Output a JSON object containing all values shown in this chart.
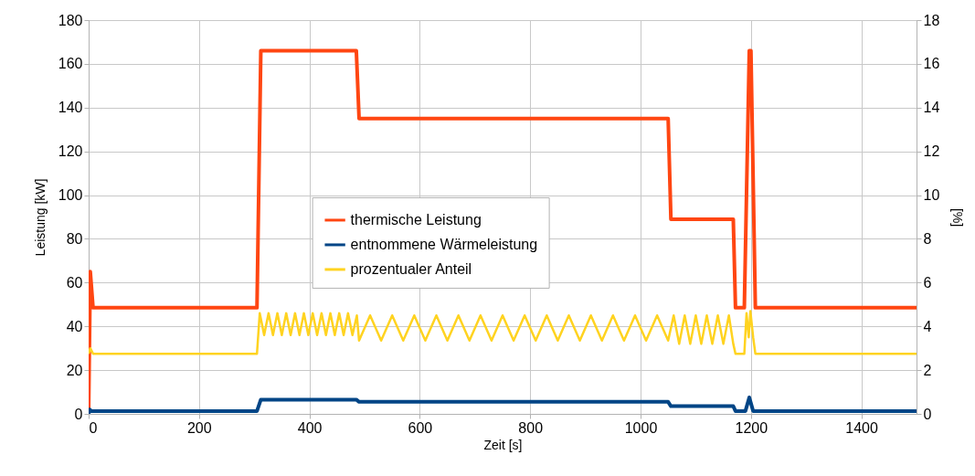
{
  "chart_data": {
    "type": "line",
    "xlabel": "Zeit [s]",
    "ylabel": "Leistung [kW]",
    "y2label": "[%]",
    "xlim": [
      0,
      1500
    ],
    "xticks": [
      0,
      200,
      400,
      600,
      800,
      1000,
      1200,
      1400
    ],
    "ylim": [
      0,
      180
    ],
    "yticks": [
      0,
      20,
      40,
      60,
      80,
      100,
      120,
      140,
      160,
      180
    ],
    "y2lim": [
      0,
      18
    ],
    "y2ticks": [
      0,
      2,
      4,
      6,
      8,
      10,
      12,
      14,
      16,
      18
    ],
    "grid": true,
    "legend": "center",
    "series": [
      {
        "name": "thermische Leistung",
        "color": "#ff4612",
        "x": [
          0,
          3,
          8,
          305,
          312,
          485,
          490,
          1050,
          1055,
          1168,
          1172,
          1188,
          1197,
          1200,
          1208,
          1500
        ],
        "values": [
          0,
          65,
          48.5,
          48.5,
          166,
          166,
          135,
          135,
          89,
          89,
          48.5,
          48.5,
          166,
          166,
          48.5,
          48.5
        ]
      },
      {
        "name": "entnommene Wärmeleistung",
        "color": "#004586",
        "x": [
          0,
          2,
          5,
          305,
          312,
          485,
          490,
          1050,
          1055,
          1168,
          1172,
          1190,
          1197,
          1204,
          1500
        ],
        "values": [
          0,
          2,
          1.3,
          1.3,
          6.5,
          6.5,
          5.5,
          5.5,
          3.5,
          3.5,
          1.3,
          1.3,
          7.5,
          1.3,
          1.3
        ]
      },
      {
        "name": "prozentualer Anteil",
        "color": "#ffd320",
        "axis": "y2",
        "x": [
          0,
          3,
          8,
          305,
          310,
          318,
          326,
          334,
          342,
          350,
          358,
          366,
          374,
          382,
          390,
          398,
          406,
          414,
          422,
          430,
          438,
          446,
          454,
          462,
          470,
          478,
          486,
          490,
          510,
          530,
          550,
          570,
          590,
          610,
          630,
          650,
          670,
          690,
          710,
          730,
          750,
          770,
          790,
          810,
          830,
          850,
          870,
          890,
          910,
          930,
          950,
          970,
          990,
          1010,
          1030,
          1050,
          1060,
          1070,
          1080,
          1090,
          1100,
          1110,
          1120,
          1130,
          1140,
          1150,
          1160,
          1168,
          1172,
          1188,
          1192,
          1196,
          1199,
          1204,
          1208,
          1500
        ],
        "values": [
          2.75,
          3.0,
          2.75,
          2.75,
          4.6,
          3.6,
          4.6,
          3.6,
          4.6,
          3.6,
          4.6,
          3.6,
          4.6,
          3.6,
          4.6,
          3.6,
          4.6,
          3.6,
          4.6,
          3.6,
          4.6,
          3.6,
          4.6,
          3.6,
          4.6,
          3.6,
          4.5,
          3.35,
          4.5,
          3.35,
          4.5,
          3.35,
          4.5,
          3.35,
          4.5,
          3.35,
          4.5,
          3.35,
          4.5,
          3.35,
          4.5,
          3.35,
          4.5,
          3.35,
          4.5,
          3.35,
          4.5,
          3.35,
          4.5,
          3.35,
          4.5,
          3.35,
          4.5,
          3.35,
          4.5,
          3.35,
          4.5,
          3.2,
          4.5,
          3.2,
          4.5,
          3.2,
          4.5,
          3.2,
          4.5,
          3.2,
          4.5,
          3.2,
          2.75,
          2.75,
          4.6,
          3.5,
          4.7,
          3.5,
          2.75,
          2.75
        ]
      }
    ]
  }
}
